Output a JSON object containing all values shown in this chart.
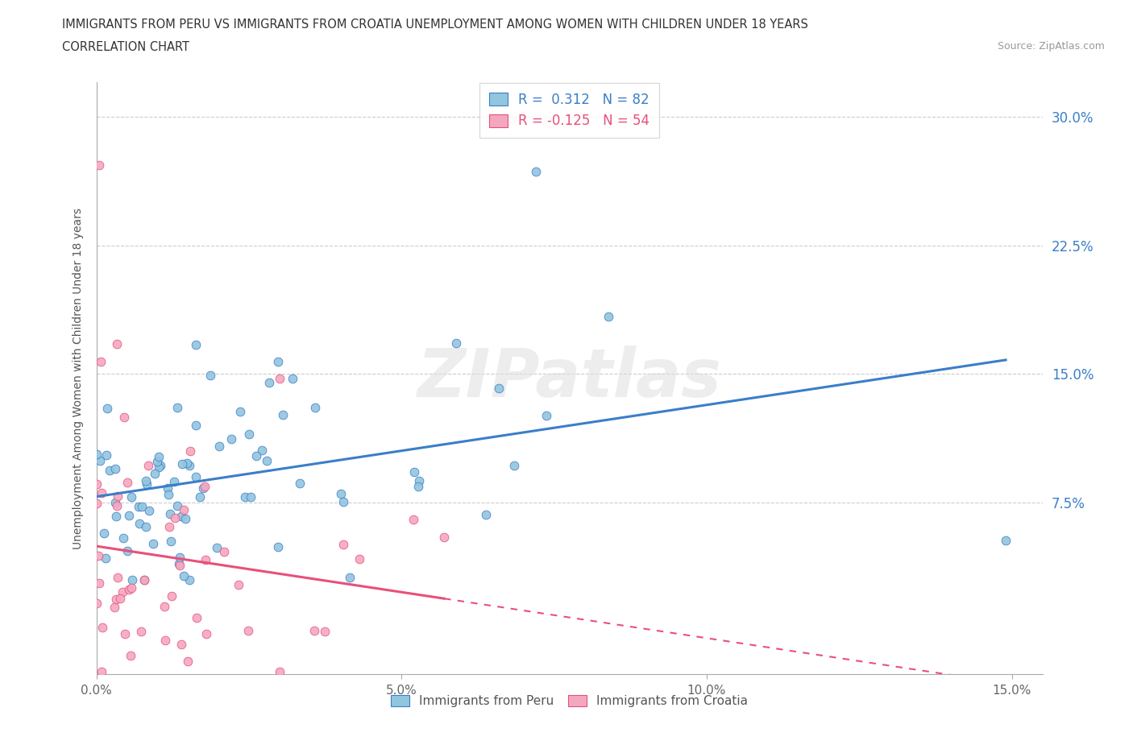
{
  "title_line1": "IMMIGRANTS FROM PERU VS IMMIGRANTS FROM CROATIA UNEMPLOYMENT AMONG WOMEN WITH CHILDREN UNDER 18 YEARS",
  "title_line2": "CORRELATION CHART",
  "source": "Source: ZipAtlas.com",
  "ylabel": "Unemployment Among Women with Children Under 18 years",
  "xlim": [
    0,
    0.155
  ],
  "ylim": [
    -0.025,
    0.32
  ],
  "yticks": [
    0.075,
    0.15,
    0.225,
    0.3
  ],
  "xticks": [
    0.0,
    0.05,
    0.1,
    0.15
  ],
  "xticklabels": [
    "0.0%",
    "5.0%",
    "10.0%",
    "15.0%"
  ],
  "yticklabels": [
    "7.5%",
    "15.0%",
    "22.5%",
    "30.0%"
  ],
  "r_peru": 0.312,
  "n_peru": 82,
  "r_croatia": -0.125,
  "n_croatia": 54,
  "color_peru": "#92C5DE",
  "color_croatia": "#F4A8C0",
  "line_peru": "#3A7EC8",
  "line_croatia": "#E8507A",
  "watermark": "ZIPatlas",
  "bg": "#FFFFFF",
  "grid_color": "#CCCCCC",
  "legend1_label": "Immigrants from Peru",
  "legend2_label": "Immigrants from Croatia",
  "legend_r1": "R =  0.312   N = 82",
  "legend_r2": "R = -0.125   N = 54"
}
